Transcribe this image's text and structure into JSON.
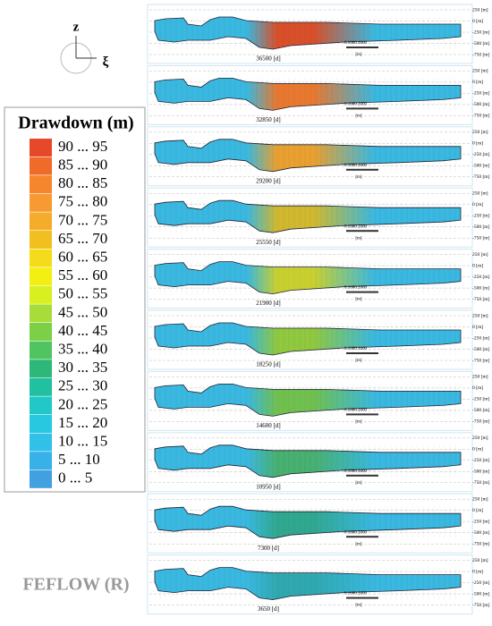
{
  "axes": {
    "vertical": "z",
    "horizontal": "ξ"
  },
  "legend": {
    "title": "Drawdown (m)",
    "items": [
      {
        "label": "90 ... 95",
        "color": "#e8482a"
      },
      {
        "label": "85 ... 90",
        "color": "#f06a2a"
      },
      {
        "label": "80 ... 85",
        "color": "#f5862e"
      },
      {
        "label": "75 ... 80",
        "color": "#f79a32"
      },
      {
        "label": "70 ... 75",
        "color": "#f5ac2a"
      },
      {
        "label": "65 ... 70",
        "color": "#f0c020"
      },
      {
        "label": "60 ... 65",
        "color": "#f5dc1a"
      },
      {
        "label": "55 ... 60",
        "color": "#f2f012"
      },
      {
        "label": "50 ... 55",
        "color": "#d8f020"
      },
      {
        "label": "45 ... 50",
        "color": "#a8dc3a"
      },
      {
        "label": "40 ... 45",
        "color": "#7cd048"
      },
      {
        "label": "35 ... 40",
        "color": "#50c460"
      },
      {
        "label": "30 ... 35",
        "color": "#2cb878"
      },
      {
        "label": "25 ... 30",
        "color": "#20c0a0"
      },
      {
        "label": "20 ... 25",
        "color": "#20c8c8"
      },
      {
        "label": "15 ... 20",
        "color": "#28c8e0"
      },
      {
        "label": "10 ... 15",
        "color": "#30c0e8"
      },
      {
        "label": "5 ... 10",
        "color": "#38b0e8"
      },
      {
        "label": "0 ... 5",
        "color": "#40a0e0"
      }
    ]
  },
  "panels": [
    {
      "time": "36500 [d]",
      "color": "#d8502a"
    },
    {
      "time": "32850 [d]",
      "color": "#e87830"
    },
    {
      "time": "29200 [d]",
      "color": "#e8a030"
    },
    {
      "time": "25550 [d]",
      "color": "#d0b830"
    },
    {
      "time": "21900 [d]",
      "color": "#c8d030"
    },
    {
      "time": "18250 [d]",
      "color": "#90c840"
    },
    {
      "time": "14600 [d]",
      "color": "#70c050"
    },
    {
      "time": "10950 [d]",
      "color": "#48b070"
    },
    {
      "time": "7300 [d]",
      "color": "#30a890"
    },
    {
      "time": "3650 [d]",
      "color": "#30a8b0"
    }
  ],
  "depth_labels": [
    "250 [m]",
    "0 [m]",
    "-250 [m]",
    "-500 [m]",
    "-750 [m]"
  ],
  "scale_bar": {
    "ticks": "0   1000 2000",
    "unit": "[m]"
  },
  "footer": "FEFLOW (R)"
}
